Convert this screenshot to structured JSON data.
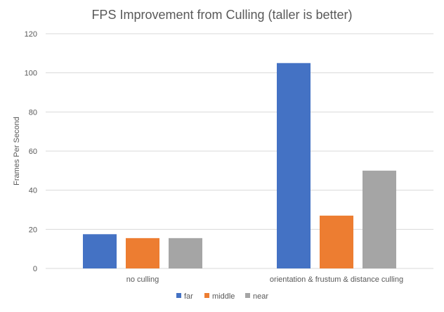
{
  "chart_data": {
    "type": "bar",
    "title": "FPS Improvement from Culling (taller is better)",
    "xlabel": "",
    "ylabel": "Frames Per Second",
    "categories": [
      "no culling",
      "orientation & frustum & distance culling"
    ],
    "series": [
      {
        "name": "far",
        "values": [
          17.5,
          105
        ],
        "color": "#4472c4"
      },
      {
        "name": "middle",
        "values": [
          15.5,
          27
        ],
        "color": "#ed7d31"
      },
      {
        "name": "near",
        "values": [
          15.5,
          50
        ],
        "color": "#a5a5a5"
      }
    ],
    "ylim": [
      0,
      120
    ],
    "yticks": [
      0,
      20,
      40,
      60,
      80,
      100,
      120
    ],
    "grid": true,
    "legend_position": "bottom"
  }
}
